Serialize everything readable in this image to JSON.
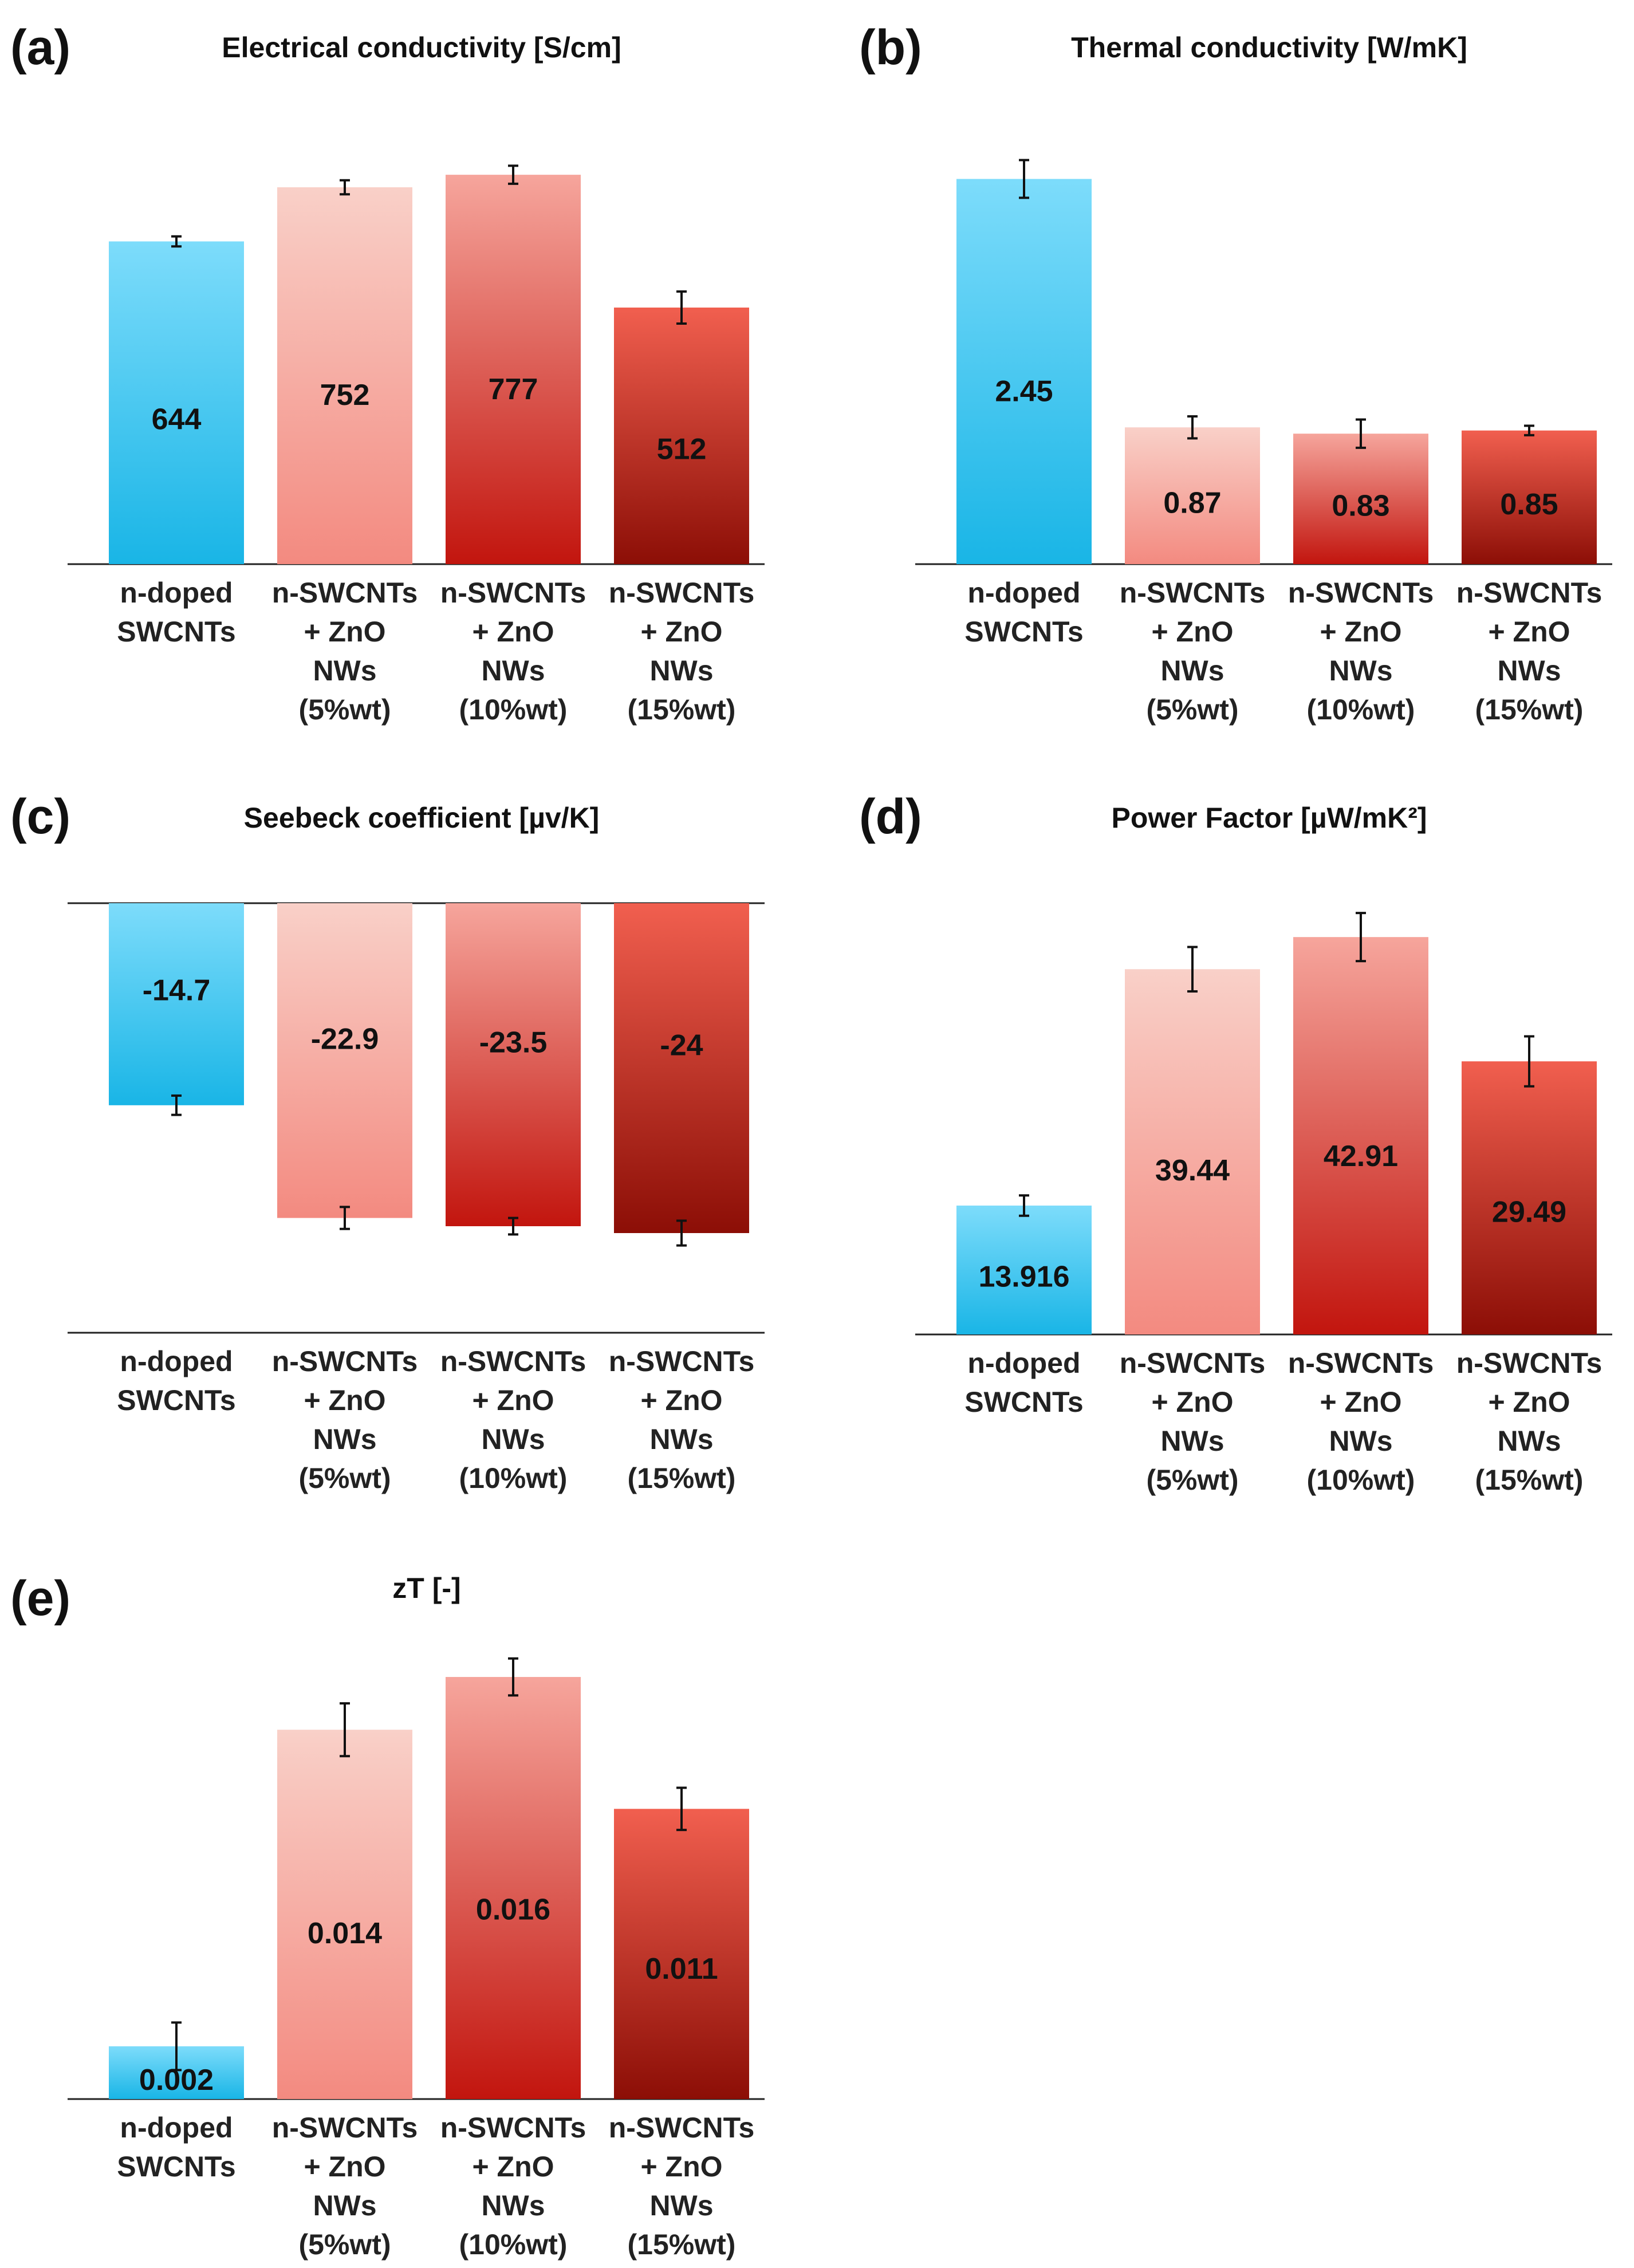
{
  "categories": [
    [
      "n-doped",
      "SWCNTs"
    ],
    [
      "n-SWCNTs",
      "+ ZnO",
      "NWs",
      "(5%wt)"
    ],
    [
      "n-SWCNTs",
      "+ ZnO",
      "NWs",
      "(10%wt)"
    ],
    [
      "n-SWCNTs",
      "+ ZnO",
      "NWs",
      "(15%wt)"
    ]
  ],
  "colors": {
    "blue_top": "#7ddcfb",
    "blue_bottom": "#19b5e6",
    "pink5_top": "#f9d0c8",
    "pink5_bottom": "#f38a80",
    "pink10_top": "#f6a59c",
    "pink10_bottom": "#c2150e",
    "red15_top": "#f15f4f",
    "red15_bottom": "#8c0e06"
  },
  "chart_data": [
    {
      "id": "a",
      "panel_label": "(a)",
      "type": "bar",
      "title": "Electrical conductivity [S/cm]",
      "values": [
        644,
        752,
        777,
        512
      ],
      "value_labels": [
        "644",
        "752",
        "777",
        "512"
      ],
      "errors": [
        10,
        14,
        18,
        32
      ],
      "ylim": [
        0,
        800
      ]
    },
    {
      "id": "b",
      "panel_label": "(b)",
      "type": "bar",
      "title": "Thermal conductivity [W/mK]",
      "values": [
        2.45,
        0.87,
        0.83,
        0.85
      ],
      "value_labels": [
        "2.45",
        "0.87",
        "0.83",
        "0.85"
      ],
      "errors": [
        0.12,
        0.07,
        0.09,
        0.03
      ],
      "ylim": [
        0,
        2.55
      ]
    },
    {
      "id": "c",
      "panel_label": "(c)",
      "type": "bar",
      "title": "Seebeck coefficient [µv/K]",
      "values": [
        -14.7,
        -22.9,
        -23.5,
        -24
      ],
      "value_labels": [
        "-14.7",
        "-22.9",
        "-23.5",
        "-24"
      ],
      "errors": [
        0.7,
        0.8,
        0.6,
        0.9
      ],
      "ylim": [
        -27.5,
        0
      ]
    },
    {
      "id": "d",
      "panel_label": "(d)",
      "type": "bar",
      "title": "Power Factor [µW/mK²]",
      "values": [
        13.916,
        39.44,
        42.91,
        29.49
      ],
      "value_labels": [
        "13.916",
        "39.44",
        "42.91",
        "29.49"
      ],
      "errors": [
        1.1,
        2.4,
        2.6,
        2.7
      ],
      "ylim": [
        0,
        47
      ]
    },
    {
      "id": "e",
      "panel_label": "(e)",
      "type": "bar",
      "title": "zT [-]",
      "values": [
        0.002,
        0.014,
        0.016,
        0.011
      ],
      "value_labels": [
        "0.002",
        "0.014",
        "0.016",
        "0.011"
      ],
      "errors": [
        0.0009,
        0.001,
        0.0007,
        0.0008
      ],
      "ylim": [
        0,
        0.0165
      ]
    }
  ]
}
